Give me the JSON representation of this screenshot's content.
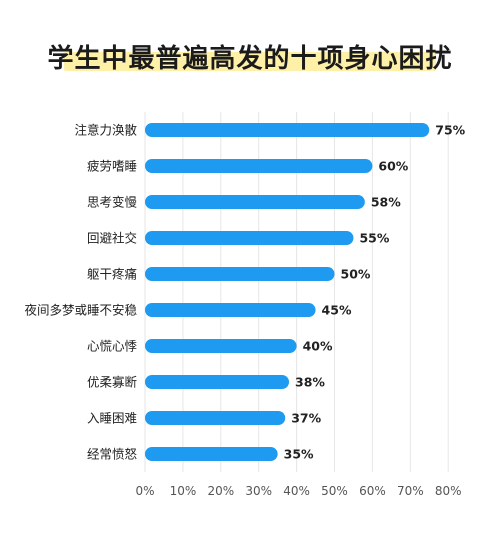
{
  "chart_data": {
    "type": "bar",
    "orientation": "horizontal",
    "title": "学生中最普遍高发的十项身心困扰",
    "categories": [
      "注意力涣散",
      "疲劳嗜睡",
      "思考变慢",
      "回避社交",
      "躯干疼痛",
      "夜间多梦或睡不安稳",
      "心慌心悸",
      "优柔寡断",
      "入睡困难",
      "经常愤怒"
    ],
    "values": [
      75,
      60,
      58,
      55,
      50,
      45,
      40,
      38,
      37,
      35
    ],
    "value_labels": [
      "75%",
      "60%",
      "58%",
      "55%",
      "50%",
      "45%",
      "40%",
      "38%",
      "37%",
      "35%"
    ],
    "xlim": [
      0,
      80
    ],
    "xticks": [
      "0%",
      "10%",
      "20%",
      "30%",
      "40%",
      "50%",
      "60%",
      "70%",
      "80%"
    ],
    "grid": true,
    "bar_color": "#1e9bf0",
    "title_highlight_color": "#fff0a8"
  }
}
